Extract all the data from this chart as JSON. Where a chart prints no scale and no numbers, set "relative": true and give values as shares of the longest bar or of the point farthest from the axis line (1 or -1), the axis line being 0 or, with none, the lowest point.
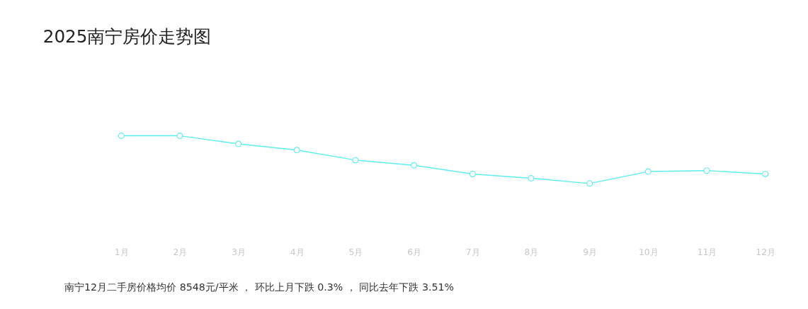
{
  "chart_data": {
    "type": "line",
    "title": "2025南宁房价走势图",
    "categories": [
      "1月",
      "2月",
      "3月",
      "4月",
      "5月",
      "6月",
      "7月",
      "8月",
      "9月",
      "10月",
      "11月",
      "12月"
    ],
    "series": [
      {
        "color": "#5eeef0",
        "values": [
          1,
          1,
          0.83,
          0.7,
          0.49,
          0.38,
          0.2,
          0.11,
          0,
          0.25,
          0.27,
          0.2
        ]
      }
    ],
    "relative": true,
    "marker": "circle",
    "line_style": "solid",
    "annotations": [
      "南宁12月二手房价格均价 8548元/平米 ， 环比上月下跌 0.3% ， 同比去年下跌 3.51%"
    ]
  }
}
